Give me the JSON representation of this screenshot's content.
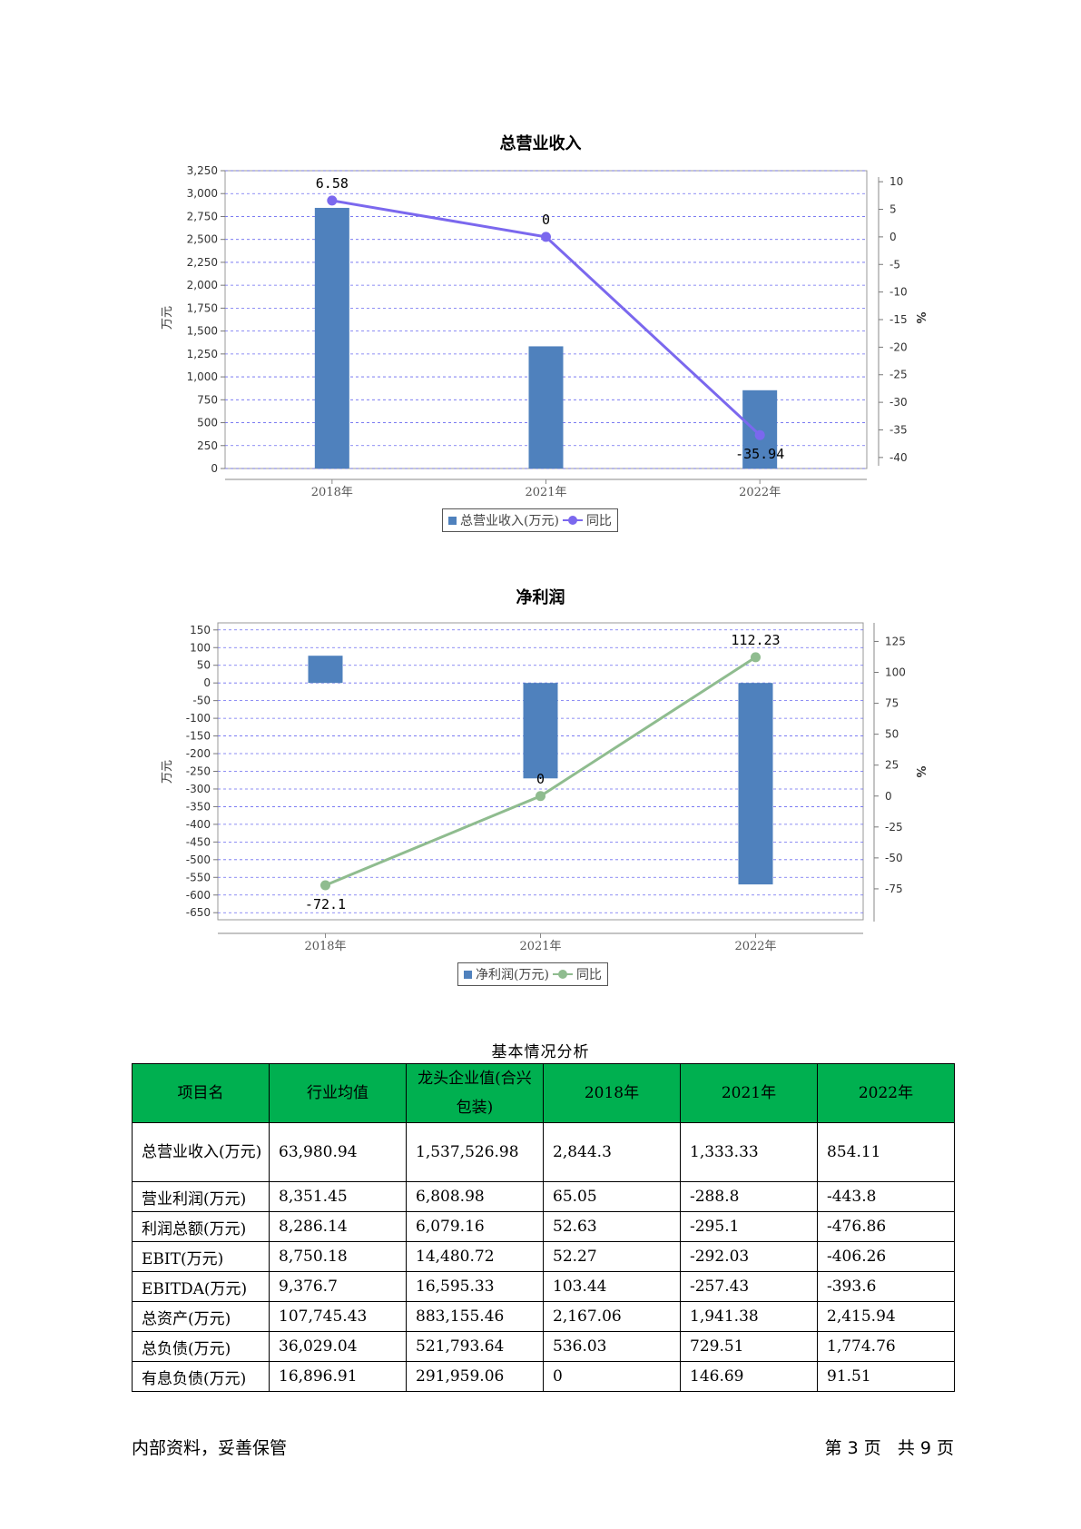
{
  "chart_data": [
    {
      "type": "bar",
      "title": "总营业收入",
      "categories": [
        "2018年",
        "2021年",
        "2022年"
      ],
      "series": [
        {
          "name": "总营业收入(万元)",
          "values": [
            2844.3,
            1333.33,
            854.11
          ],
          "color": "#4f81bd",
          "axis": "left"
        },
        {
          "name": "同比",
          "type": "line",
          "values": [
            6.58,
            0,
            -35.94
          ],
          "color": "#7b68ee",
          "axis": "right",
          "labels": [
            "6.58",
            "0",
            "-35.94"
          ]
        }
      ],
      "ylabel": "万元",
      "y2label": "%",
      "ylim": [
        0,
        3250
      ],
      "y2lim": [
        -42,
        12
      ],
      "yticks": [
        0,
        250,
        500,
        750,
        1000,
        1250,
        1500,
        1750,
        2000,
        2250,
        2500,
        2750,
        3000,
        3250
      ],
      "y2ticks": [
        10,
        5,
        0,
        -5,
        -10,
        -15,
        -20,
        -25,
        -30,
        -35,
        -40
      ],
      "grid": true,
      "legend": "bottom-center"
    },
    {
      "type": "bar",
      "title": "净利润",
      "categories": [
        "2018年",
        "2021年",
        "2022年"
      ],
      "series": [
        {
          "name": "净利润(万元)",
          "values": [
            77,
            -270,
            -570
          ],
          "color": "#4f81bd",
          "axis": "left"
        },
        {
          "name": "同比",
          "type": "line",
          "values": [
            -72.1,
            0,
            112.23
          ],
          "color": "#8fbc8f",
          "axis": "right",
          "labels": [
            "-72.1",
            "0",
            "112.23"
          ]
        }
      ],
      "ylabel": "万元",
      "y2label": "%",
      "ylim": [
        -670,
        170
      ],
      "y2lim": [
        -100,
        140
      ],
      "yticks": [
        150,
        100,
        50,
        0,
        -50,
        -100,
        -150,
        -200,
        -250,
        -300,
        -350,
        -400,
        -450,
        -500,
        -550,
        -600,
        -650
      ],
      "y2ticks": [
        125,
        100,
        75,
        50,
        25,
        0,
        -25,
        -50,
        -75
      ],
      "grid": true,
      "legend": "bottom-center"
    }
  ],
  "table": {
    "title": "基本情况分析",
    "headers": [
      "项目名",
      "行业均值",
      "龙头企业值(合兴包装)",
      "2018年",
      "2021年",
      "2022年"
    ],
    "rows": [
      [
        "总营业收入(万元)",
        "63,980.94",
        "1,537,526.98",
        "2,844.3",
        "1,333.33",
        "854.11"
      ],
      [
        "营业利润(万元)",
        "8,351.45",
        "6,808.98",
        "65.05",
        "-288.8",
        "-443.8"
      ],
      [
        "利润总额(万元)",
        "8,286.14",
        "6,079.16",
        "52.63",
        "-295.1",
        "-476.86"
      ],
      [
        "EBIT(万元)",
        "8,750.18",
        "14,480.72",
        "52.27",
        "-292.03",
        "-406.26"
      ],
      [
        "EBITDA(万元)",
        "9,376.7",
        "16,595.33",
        "103.44",
        "-257.43",
        "-393.6"
      ],
      [
        "总资产(万元)",
        "107,745.43",
        "883,155.46",
        "2,167.06",
        "1,941.38",
        "2,415.94"
      ],
      [
        "总负债(万元)",
        "36,029.04",
        "521,793.64",
        "536.03",
        "729.51",
        "1,774.76"
      ],
      [
        "有息负债(万元)",
        "16,896.91",
        "291,959.06",
        "0",
        "146.69",
        "91.51"
      ]
    ]
  },
  "footer": {
    "left": "内部资料，妥善保管",
    "right": "第 3 页   共 9 页"
  }
}
